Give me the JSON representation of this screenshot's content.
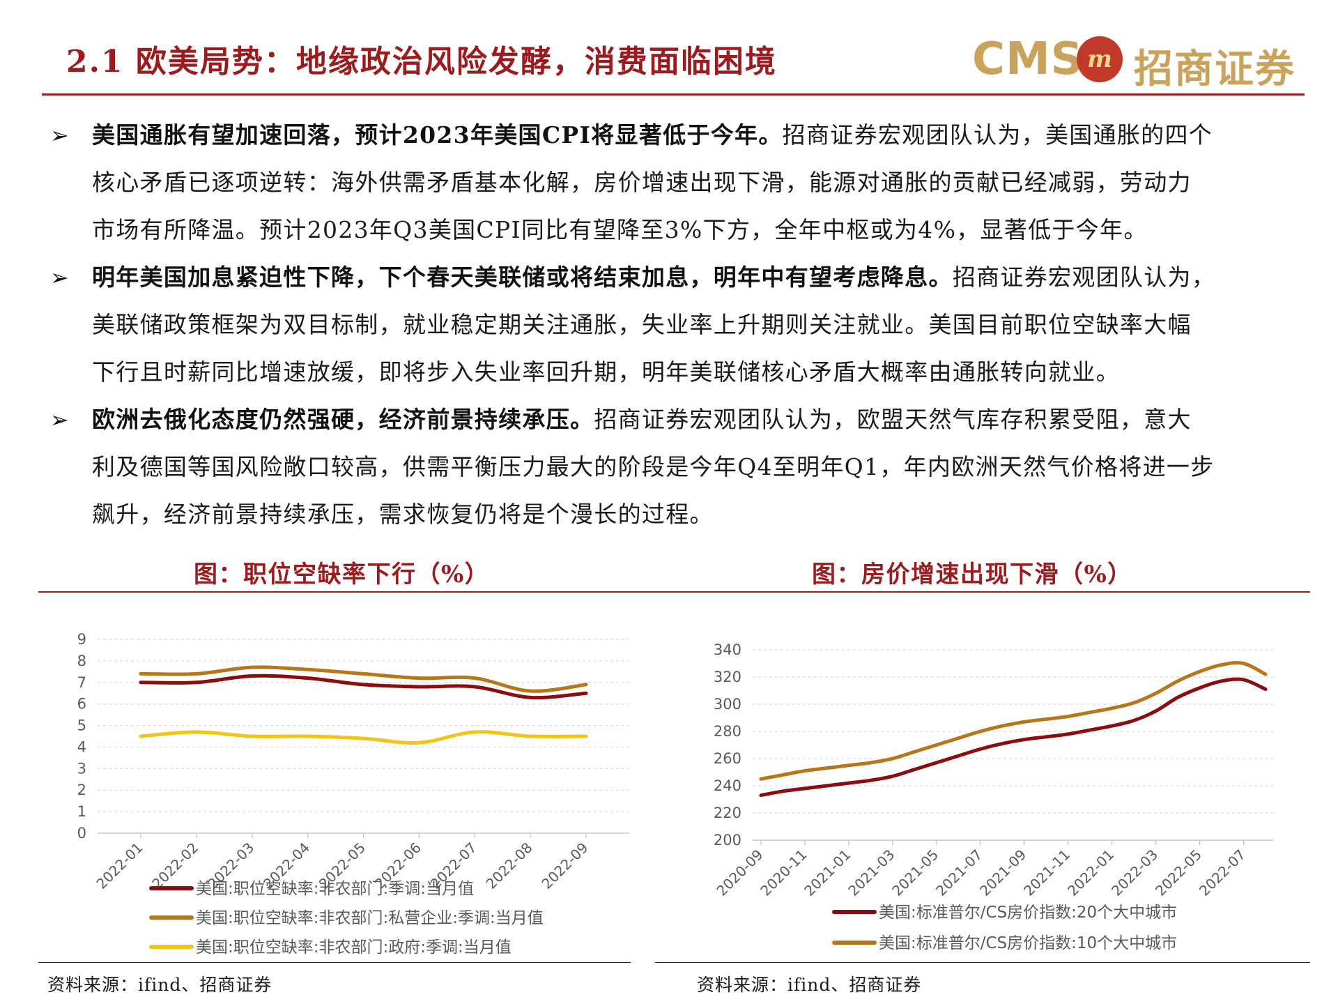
{
  "header": {
    "title": "2.1 欧美局势：地缘政治风险发酵，消费面临困境",
    "logo_cms": "CMS",
    "logo_mark": "m",
    "logo_cn": "招商证券"
  },
  "bullets": [
    {
      "lines": [
        {
          "bold": "美国通胀有望加速回落，预计2023年美国CPI将显著低于今年。",
          "text": "招商证券宏观团队认为，美国通胀的四个"
        },
        {
          "bold": "",
          "text": "核心矛盾已逐项逆转：海外供需矛盾基本化解，房价增速出现下滑，能源对通胀的贡献已经减弱，劳动力"
        },
        {
          "bold": "",
          "text": "市场有所降温。预计2023年Q3美国CPI同比有望降至3%下方，全年中枢或为4%，显著低于今年。"
        }
      ]
    },
    {
      "lines": [
        {
          "bold": "明年美国加息紧迫性下降，下个春天美联储或将结束加息，明年中有望考虑降息。",
          "text": "招商证券宏观团队认为，"
        },
        {
          "bold": "",
          "text": "美联储政策框架为双目标制，就业稳定期关注通胀，失业率上升期则关注就业。美国目前职位空缺率大幅"
        },
        {
          "bold": "",
          "text": "下行且时薪同比增速放缓，即将步入失业率回升期，明年美联储核心矛盾大概率由通胀转向就业。"
        }
      ]
    },
    {
      "lines": [
        {
          "bold": "欧洲去俄化态度仍然强硬，经济前景持续承压。",
          "text": "招商证券宏观团队认为，欧盟天然气库存积累受阻，意大"
        },
        {
          "bold": "",
          "text": "利及德国等国风险敞口较高，供需平衡压力最大的阶段是今年Q4至明年Q1，年内欧洲天然气价格将进一步"
        },
        {
          "bold": "",
          "text": "飙升，经济前景持续承压，需求恢复仍将是个漫长的过程。"
        }
      ]
    }
  ],
  "figures": {
    "left_title": "图：职位空缺率下行（%）",
    "right_title": "图：房价增速出现下滑（%）",
    "left_source": "资料来源：ifind、招商证券",
    "right_source": "资料来源：ifind、招商证券"
  },
  "chart_data": [
    {
      "type": "line",
      "title": "",
      "categories": [
        "2022-01",
        "2022-02",
        "2022-03",
        "2022-04",
        "2022-05",
        "2022-06",
        "2022-07",
        "2022-08",
        "2022-09"
      ],
      "ylim": [
        0,
        9
      ],
      "yticks": [
        0,
        1,
        2,
        3,
        4,
        5,
        6,
        7,
        8,
        9
      ],
      "grid": true,
      "legend_position": "bottom",
      "series": [
        {
          "name": "美国:职位空缺率:非农部门:季调:当月值",
          "color": "#8b0d0d",
          "values": [
            7.0,
            7.0,
            7.3,
            7.2,
            6.9,
            6.8,
            6.8,
            6.3,
            6.5
          ]
        },
        {
          "name": "美国:职位空缺率:非农部门:私营企业:季调:当月值",
          "color": "#b8761a",
          "values": [
            7.4,
            7.4,
            7.7,
            7.6,
            7.4,
            7.2,
            7.2,
            6.6,
            6.9
          ]
        },
        {
          "name": "美国:职位空缺率:非农部门:政府:季调:当月值",
          "color": "#f2c418",
          "values": [
            4.5,
            4.7,
            4.5,
            4.5,
            4.4,
            4.2,
            4.7,
            4.5,
            4.5
          ]
        }
      ]
    },
    {
      "type": "line",
      "title": "",
      "categories": [
        "2020-09",
        "2020-11",
        "2021-01",
        "2021-03",
        "2021-05",
        "2021-07",
        "2021-09",
        "2021-11",
        "2022-01",
        "2022-03",
        "2022-05",
        "2022-07"
      ],
      "ylim": [
        200,
        340
      ],
      "yticks": [
        200,
        220,
        240,
        260,
        280,
        300,
        320,
        340
      ],
      "grid": true,
      "legend_position": "bottom",
      "x": [
        "2020-09",
        "2020-10",
        "2020-11",
        "2020-12",
        "2021-01",
        "2021-02",
        "2021-03",
        "2021-04",
        "2021-05",
        "2021-06",
        "2021-07",
        "2021-08",
        "2021-09",
        "2021-10",
        "2021-11",
        "2021-12",
        "2022-01",
        "2022-02",
        "2022-03",
        "2022-04",
        "2022-05",
        "2022-06",
        "2022-07",
        "2022-08"
      ],
      "series": [
        {
          "name": "美国:标准普尔/CS房价指数:20个大中城市",
          "color": "#8b0d0d",
          "values": [
            233,
            236,
            238,
            240,
            242,
            244,
            247,
            252,
            257,
            262,
            267,
            271,
            274,
            276,
            278,
            281,
            284,
            288,
            295,
            305,
            312,
            317,
            318,
            311
          ]
        },
        {
          "name": "美国:标准普尔/CS房价指数:10个大中城市",
          "color": "#b8761a",
          "values": [
            245,
            248,
            251,
            253,
            255,
            257,
            260,
            265,
            270,
            275,
            280,
            284,
            287,
            289,
            291,
            294,
            297,
            301,
            308,
            317,
            324,
            329,
            330,
            322
          ]
        }
      ]
    }
  ]
}
